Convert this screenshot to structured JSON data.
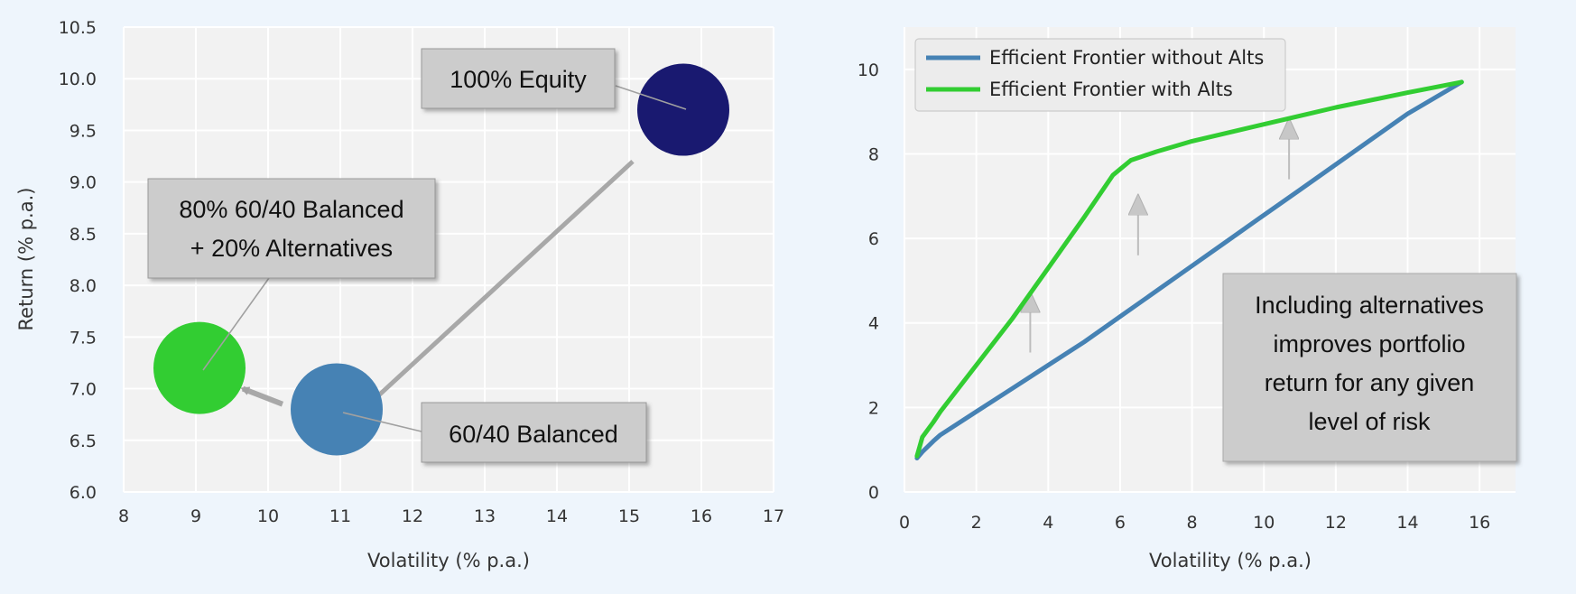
{
  "chart_data": [
    {
      "type": "scatter",
      "title": "",
      "xlabel": "Volatility (% p.a.)",
      "ylabel": "Return (% p.a.)",
      "xlim": [
        8,
        17
      ],
      "ylim": [
        6.0,
        10.5
      ],
      "xticks": [
        "8",
        "9",
        "10",
        "11",
        "12",
        "13",
        "14",
        "15",
        "16",
        "17"
      ],
      "yticks": [
        "6.0",
        "6.5",
        "7.0",
        "7.5",
        "8.0",
        "8.5",
        "9.0",
        "9.5",
        "10.0",
        "10.5"
      ],
      "grid": true,
      "points": [
        {
          "label": "100% Equity",
          "x": 15.75,
          "y": 9.7,
          "color": "#191970"
        },
        {
          "label": "60/40 Balanced",
          "x": 10.95,
          "y": 6.8,
          "color": "#4682b4"
        },
        {
          "label": "80% 60/40 Balanced + 20% Alternatives",
          "x": 9.05,
          "y": 7.2,
          "color": "#32cd32"
        }
      ],
      "callouts": [
        {
          "lines": [
            "100% Equity"
          ]
        },
        {
          "lines": [
            "60/40 Balanced"
          ]
        },
        {
          "lines": [
            "80% 60/40 Balanced",
            "+ 20% Alternatives"
          ]
        }
      ],
      "arrows": [
        {
          "from": [
            15.05,
            9.2
          ],
          "to": [
            11.4,
            6.85
          ]
        },
        {
          "from": [
            10.2,
            6.85
          ],
          "to": [
            9.65,
            7.0
          ]
        }
      ]
    },
    {
      "type": "line",
      "title": "",
      "xlabel": "Volatility (% p.a.)",
      "ylabel": "",
      "xlim": [
        0,
        17
      ],
      "ylim": [
        0,
        11
      ],
      "xticks": [
        "0",
        "2",
        "4",
        "6",
        "8",
        "10",
        "12",
        "14",
        "16"
      ],
      "yticks": [
        "0",
        "2",
        "4",
        "6",
        "8",
        "10"
      ],
      "grid": true,
      "legend": "top-left",
      "series": [
        {
          "name": "Efficient Frontier without Alts",
          "color": "#4682b4",
          "x": [
            0.35,
            0.5,
            0.8,
            1.0,
            2.0,
            3.0,
            4.0,
            5.0,
            6.0,
            7.0,
            8.0,
            9.0,
            10.0,
            11.0,
            12.0,
            13.0,
            14.0,
            15.5
          ],
          "y": [
            0.8,
            0.95,
            1.2,
            1.35,
            1.9,
            2.45,
            3.0,
            3.55,
            4.15,
            4.75,
            5.35,
            5.95,
            6.55,
            7.15,
            7.75,
            8.35,
            8.95,
            9.7
          ]
        },
        {
          "name": "Efficient Frontier with Alts",
          "color": "#32cd32",
          "x": [
            0.35,
            0.5,
            0.8,
            1.0,
            2.0,
            3.0,
            4.0,
            5.0,
            5.8,
            6.3,
            7.0,
            8.0,
            10.0,
            12.0,
            14.0,
            15.5
          ],
          "y": [
            0.85,
            1.3,
            1.65,
            1.9,
            3.0,
            4.1,
            5.3,
            6.5,
            7.5,
            7.85,
            8.05,
            8.3,
            8.7,
            9.1,
            9.45,
            9.7
          ]
        }
      ],
      "arrows": [
        {
          "from": [
            3.5,
            3.3
          ],
          "to": [
            3.5,
            4.5
          ]
        },
        {
          "from": [
            6.5,
            5.6
          ],
          "to": [
            6.5,
            6.8
          ]
        },
        {
          "from": [
            10.7,
            7.4
          ],
          "to": [
            10.7,
            8.6
          ]
        }
      ],
      "callout": {
        "lines": [
          "Including alternatives",
          "improves portfolio",
          "return for any given",
          "level of risk"
        ]
      }
    }
  ]
}
